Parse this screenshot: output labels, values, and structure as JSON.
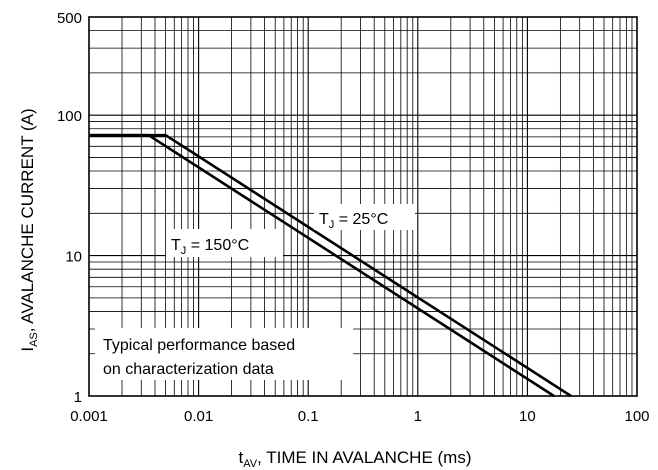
{
  "chart_data": {
    "type": "line",
    "xscale": "log",
    "yscale": "log",
    "xlim": [
      0.001,
      100
    ],
    "ylim": [
      1,
      500
    ],
    "grid": true,
    "xlabel_prefix": "t",
    "xlabel_sub": "AV",
    "xlabel_rest": ", TIME IN AVALANCHE (ms)",
    "ylabel_prefix": "I",
    "ylabel_sub": "AS",
    "ylabel_rest": ", AVALANCHE CURRENT (A)",
    "x_tick_labels": [
      "0.001",
      "0.01",
      "0.1",
      "1",
      "10",
      "100"
    ],
    "x_tick_values": [
      0.001,
      0.01,
      0.1,
      1,
      10,
      100
    ],
    "y_tick_labels": [
      "1",
      "10",
      "100",
      "500"
    ],
    "y_tick_values": [
      1,
      10,
      100,
      500
    ],
    "series": [
      {
        "name_prefix": "T",
        "name_sub": "J",
        "name_rest": " = 25°C",
        "x": [
          0.001,
          0.005,
          25
        ],
        "y": [
          72,
          72,
          1
        ]
      },
      {
        "name_prefix": "T",
        "name_sub": "J",
        "name_rest": " = 150°C",
        "x": [
          0.001,
          0.0035,
          17.5
        ],
        "y": [
          72,
          72,
          1
        ]
      }
    ],
    "annotation_lines": [
      "Typical performance based",
      "on characterization data"
    ]
  }
}
